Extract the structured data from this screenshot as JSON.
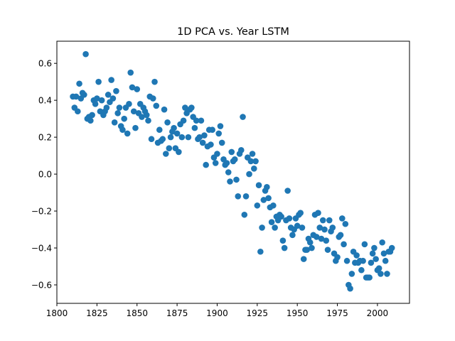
{
  "chart_data": {
    "type": "scatter",
    "title": "1D PCA vs. Year LSTM",
    "xlabel": "",
    "ylabel": "",
    "xlim": [
      1800,
      2020
    ],
    "ylim": [
      -0.7,
      0.72
    ],
    "xticks": [
      1800,
      1825,
      1850,
      1875,
      1900,
      1925,
      1950,
      1975,
      2000
    ],
    "yticks": [
      -0.6,
      -0.4,
      -0.2,
      0.0,
      0.2,
      0.4,
      0.6
    ],
    "ytick_labels": [
      "−0.6",
      "−0.4",
      "−0.2",
      "0.0",
      "0.2",
      "0.4",
      "0.6"
    ],
    "grid": false,
    "marker_color": "#1f77b4",
    "points": [
      [
        1810,
        0.42
      ],
      [
        1811,
        0.36
      ],
      [
        1812,
        0.42
      ],
      [
        1813,
        0.34
      ],
      [
        1814,
        0.49
      ],
      [
        1815,
        0.41
      ],
      [
        1816,
        0.44
      ],
      [
        1817,
        0.43
      ],
      [
        1818,
        0.65
      ],
      [
        1819,
        0.3
      ],
      [
        1820,
        0.31
      ],
      [
        1821,
        0.29
      ],
      [
        1822,
        0.32
      ],
      [
        1823,
        0.4
      ],
      [
        1824,
        0.38
      ],
      [
        1825,
        0.41
      ],
      [
        1826,
        0.5
      ],
      [
        1827,
        0.34
      ],
      [
        1828,
        0.4
      ],
      [
        1829,
        0.32
      ],
      [
        1830,
        0.34
      ],
      [
        1831,
        0.36
      ],
      [
        1832,
        0.43
      ],
      [
        1833,
        0.39
      ],
      [
        1834,
        0.51
      ],
      [
        1835,
        0.41
      ],
      [
        1836,
        0.28
      ],
      [
        1837,
        0.45
      ],
      [
        1838,
        0.33
      ],
      [
        1839,
        0.36
      ],
      [
        1840,
        0.26
      ],
      [
        1841,
        0.24
      ],
      [
        1842,
        0.3
      ],
      [
        1843,
        0.36
      ],
      [
        1844,
        0.22
      ],
      [
        1845,
        0.38
      ],
      [
        1846,
        0.55
      ],
      [
        1847,
        0.47
      ],
      [
        1848,
        0.34
      ],
      [
        1849,
        0.25
      ],
      [
        1850,
        0.46
      ],
      [
        1851,
        0.33
      ],
      [
        1852,
        0.38
      ],
      [
        1853,
        0.31
      ],
      [
        1854,
        0.36
      ],
      [
        1855,
        0.34
      ],
      [
        1856,
        0.32
      ],
      [
        1857,
        0.29
      ],
      [
        1858,
        0.42
      ],
      [
        1859,
        0.19
      ],
      [
        1860,
        0.41
      ],
      [
        1861,
        0.5
      ],
      [
        1862,
        0.37
      ],
      [
        1863,
        0.17
      ],
      [
        1864,
        0.24
      ],
      [
        1865,
        0.18
      ],
      [
        1866,
        0.19
      ],
      [
        1867,
        0.35
      ],
      [
        1868,
        0.11
      ],
      [
        1869,
        0.28
      ],
      [
        1870,
        0.14
      ],
      [
        1871,
        0.2
      ],
      [
        1872,
        0.23
      ],
      [
        1873,
        0.25
      ],
      [
        1874,
        0.14
      ],
      [
        1875,
        0.22
      ],
      [
        1876,
        0.12
      ],
      [
        1877,
        0.27
      ],
      [
        1878,
        0.2
      ],
      [
        1879,
        0.29
      ],
      [
        1880,
        0.36
      ],
      [
        1881,
        0.33
      ],
      [
        1882,
        0.2
      ],
      [
        1883,
        0.35
      ],
      [
        1884,
        0.36
      ],
      [
        1885,
        0.31
      ],
      [
        1886,
        0.25
      ],
      [
        1887,
        0.29
      ],
      [
        1888,
        0.19
      ],
      [
        1889,
        0.2
      ],
      [
        1890,
        0.29
      ],
      [
        1891,
        0.17
      ],
      [
        1892,
        0.21
      ],
      [
        1893,
        0.05
      ],
      [
        1894,
        0.15
      ],
      [
        1895,
        0.24
      ],
      [
        1896,
        0.16
      ],
      [
        1897,
        0.24
      ],
      [
        1898,
        0.09
      ],
      [
        1899,
        0.06
      ],
      [
        1900,
        0.11
      ],
      [
        1901,
        0.22
      ],
      [
        1902,
        0.26
      ],
      [
        1903,
        0.17
      ],
      [
        1904,
        0.08
      ],
      [
        1905,
        0.05
      ],
      [
        1906,
        0.06
      ],
      [
        1907,
        0.01
      ],
      [
        1908,
        -0.04
      ],
      [
        1909,
        0.12
      ],
      [
        1910,
        0.07
      ],
      [
        1911,
        0.08
      ],
      [
        1912,
        -0.03
      ],
      [
        1913,
        -0.12
      ],
      [
        1914,
        0.11
      ],
      [
        1915,
        0.13
      ],
      [
        1916,
        0.31
      ],
      [
        1917,
        -0.22
      ],
      [
        1918,
        -0.12
      ],
      [
        1919,
        0.09
      ],
      [
        1920,
        0.0
      ],
      [
        1921,
        0.07
      ],
      [
        1922,
        0.11
      ],
      [
        1923,
        0.03
      ],
      [
        1924,
        0.07
      ],
      [
        1925,
        -0.17
      ],
      [
        1926,
        -0.06
      ],
      [
        1927,
        -0.42
      ],
      [
        1928,
        -0.29
      ],
      [
        1929,
        -0.14
      ],
      [
        1930,
        -0.09
      ],
      [
        1931,
        -0.07
      ],
      [
        1932,
        -0.13
      ],
      [
        1933,
        -0.18
      ],
      [
        1934,
        -0.26
      ],
      [
        1935,
        -0.17
      ],
      [
        1936,
        -0.29
      ],
      [
        1937,
        -0.23
      ],
      [
        1938,
        -0.25
      ],
      [
        1939,
        -0.22
      ],
      [
        1940,
        -0.23
      ],
      [
        1941,
        -0.36
      ],
      [
        1942,
        -0.4
      ],
      [
        1943,
        -0.25
      ],
      [
        1944,
        -0.09
      ],
      [
        1945,
        -0.24
      ],
      [
        1946,
        -0.29
      ],
      [
        1947,
        -0.33
      ],
      [
        1948,
        -0.3
      ],
      [
        1949,
        -0.24
      ],
      [
        1950,
        -0.28
      ],
      [
        1951,
        -0.22
      ],
      [
        1952,
        -0.21
      ],
      [
        1953,
        -0.29
      ],
      [
        1954,
        -0.46
      ],
      [
        1955,
        -0.41
      ],
      [
        1956,
        -0.41
      ],
      [
        1957,
        -0.35
      ],
      [
        1958,
        -0.37
      ],
      [
        1959,
        -0.4
      ],
      [
        1960,
        -0.33
      ],
      [
        1961,
        -0.22
      ],
      [
        1962,
        -0.34
      ],
      [
        1963,
        -0.21
      ],
      [
        1964,
        -0.29
      ],
      [
        1965,
        -0.35
      ],
      [
        1966,
        -0.25
      ],
      [
        1967,
        -0.3
      ],
      [
        1968,
        -0.36
      ],
      [
        1969,
        -0.41
      ],
      [
        1970,
        -0.25
      ],
      [
        1971,
        -0.31
      ],
      [
        1972,
        -0.29
      ],
      [
        1973,
        -0.43
      ],
      [
        1974,
        -0.47
      ],
      [
        1975,
        -0.45
      ],
      [
        1976,
        -0.34
      ],
      [
        1977,
        -0.33
      ],
      [
        1978,
        -0.24
      ],
      [
        1979,
        -0.38
      ],
      [
        1980,
        -0.27
      ],
      [
        1981,
        -0.47
      ],
      [
        1982,
        -0.6
      ],
      [
        1983,
        -0.62
      ],
      [
        1984,
        -0.54
      ],
      [
        1985,
        -0.42
      ],
      [
        1986,
        -0.48
      ],
      [
        1987,
        -0.44
      ],
      [
        1988,
        -0.48
      ],
      [
        1989,
        -0.47
      ],
      [
        1990,
        -0.52
      ],
      [
        1991,
        -0.47
      ],
      [
        1992,
        -0.38
      ],
      [
        1993,
        -0.56
      ],
      [
        1994,
        -0.56
      ],
      [
        1995,
        -0.56
      ],
      [
        1996,
        -0.48
      ],
      [
        1997,
        -0.43
      ],
      [
        1998,
        -0.4
      ],
      [
        1999,
        -0.46
      ],
      [
        2000,
        -0.52
      ],
      [
        2001,
        -0.51
      ],
      [
        2002,
        -0.54
      ],
      [
        2003,
        -0.37
      ],
      [
        2004,
        -0.43
      ],
      [
        2005,
        -0.47
      ],
      [
        2006,
        -0.54
      ],
      [
        2007,
        -0.42
      ],
      [
        2008,
        -0.42
      ],
      [
        2009,
        -0.4
      ]
    ]
  }
}
